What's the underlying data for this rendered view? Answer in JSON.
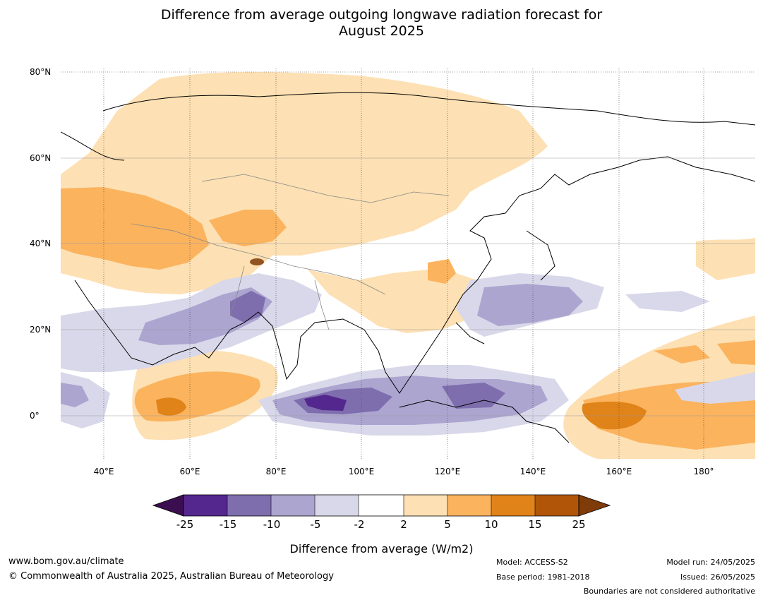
{
  "title_line1": "Difference from average outgoing longwave radiation forecast for",
  "title_line2": "August 2025",
  "lat_labels": [
    "80°N",
    "60°N",
    "40°N",
    "20°N",
    "0°"
  ],
  "lon_labels": [
    "40°E",
    "60°E",
    "80°E",
    "100°E",
    "120°E",
    "140°E",
    "160°E",
    "180°"
  ],
  "colorbar": {
    "label": "Difference from average (W/m2)",
    "ticks": [
      "-25",
      "-15",
      "-10",
      "-5",
      "-2",
      "2",
      "5",
      "10",
      "15",
      "25"
    ],
    "colors": [
      "#3b0f4f",
      "#54278f",
      "#7f6eae",
      "#aca5d0",
      "#d9d8ea",
      "#ffffff",
      "#fde0b3",
      "#fbb35e",
      "#e08318",
      "#b15608",
      "#7f3b08"
    ]
  },
  "footer": {
    "url": "www.bom.gov.au/climate",
    "copyright": "© Commonwealth of Australia 2025, Australian Bureau of Meteorology",
    "model": "Model: ACCESS-S2",
    "base_period": "Base period: 1981-2018",
    "model_run": "Model run: 24/05/2025",
    "issued": "Issued: 26/05/2025",
    "disclaimer": "Boundaries are not considered authoritative"
  }
}
